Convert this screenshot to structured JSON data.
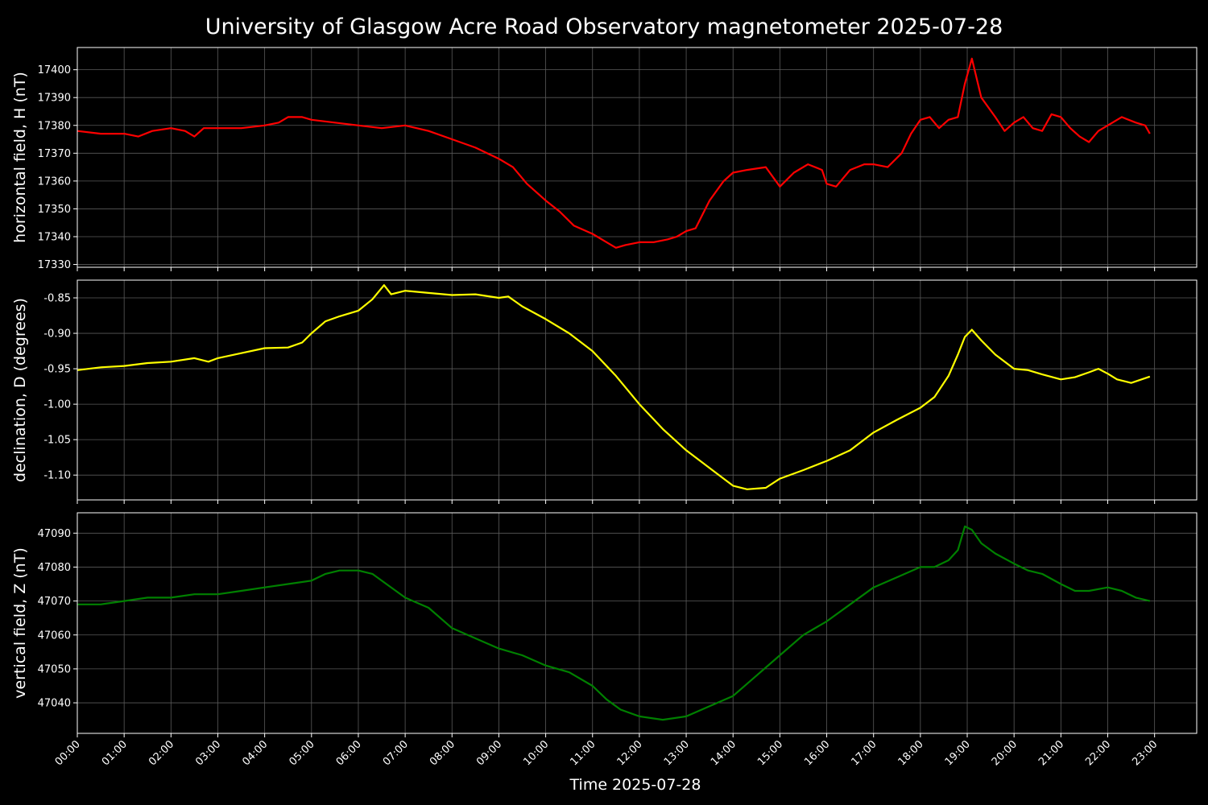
{
  "chart_data": {
    "type": "line",
    "title": "University of Glasgow Acre Road Observatory magnetometer 2025-07-28",
    "xlabel": "Time 2025-07-28",
    "x_ticks": [
      "00:00",
      "01:00",
      "02:00",
      "03:00",
      "04:00",
      "05:00",
      "06:00",
      "07:00",
      "08:00",
      "09:00",
      "10:00",
      "11:00",
      "12:00",
      "13:00",
      "14:00",
      "15:00",
      "16:00",
      "17:00",
      "18:00",
      "19:00",
      "20:00",
      "21:00",
      "22:00",
      "23:00"
    ],
    "xlim_hours": [
      0,
      23.9
    ],
    "grid": true,
    "background": "#000000",
    "panels": [
      {
        "ylabel": "horizontal field, H (nT)",
        "color": "#ff0000",
        "ylim": [
          17329,
          17408
        ],
        "yticks": [
          17330,
          17340,
          17350,
          17360,
          17370,
          17380,
          17390,
          17400
        ],
        "tick_format": 0,
        "x": [
          0,
          0.5,
          1,
          1.3,
          1.6,
          2,
          2.3,
          2.5,
          2.7,
          3,
          3.5,
          4,
          4.3,
          4.5,
          4.8,
          5,
          5.5,
          6,
          6.5,
          7,
          7.5,
          8,
          8.5,
          9,
          9.3,
          9.6,
          10,
          10.3,
          10.6,
          11,
          11.3,
          11.5,
          11.7,
          12,
          12.3,
          12.6,
          12.8,
          13,
          13.2,
          13.5,
          13.8,
          14,
          14.3,
          14.7,
          15,
          15.3,
          15.6,
          15.9,
          16,
          16.2,
          16.5,
          16.8,
          17,
          17.3,
          17.6,
          17.8,
          18,
          18.2,
          18.4,
          18.6,
          18.8,
          18.95,
          19.1,
          19.3,
          19.6,
          19.8,
          20,
          20.2,
          20.4,
          20.6,
          20.8,
          21,
          21.2,
          21.4,
          21.6,
          21.8,
          22,
          22.3,
          22.6,
          22.8,
          22.9
        ],
        "values": [
          17378,
          17377,
          17377,
          17376,
          17378,
          17379,
          17378,
          17376,
          17379,
          17379,
          17379,
          17380,
          17381,
          17383,
          17383,
          17382,
          17381,
          17380,
          17379,
          17380,
          17378,
          17375,
          17372,
          17368,
          17365,
          17359,
          17353,
          17349,
          17344,
          17341,
          17338,
          17336,
          17337,
          17338,
          17338,
          17339,
          17340,
          17342,
          17343,
          17353,
          17360,
          17363,
          17364,
          17365,
          17358,
          17363,
          17366,
          17364,
          17359,
          17358,
          17364,
          17366,
          17366,
          17365,
          17370,
          17377,
          17382,
          17383,
          17379,
          17382,
          17383,
          17395,
          17404,
          17390,
          17383,
          17378,
          17381,
          17383,
          17379,
          17378,
          17384,
          17383,
          17379,
          17376,
          17374,
          17378,
          17380,
          17383,
          17381,
          17380,
          17377
        ]
      },
      {
        "ylabel": "declination, D (degrees)",
        "color": "#ffff00",
        "ylim": [
          -1.135,
          -0.825
        ],
        "yticks": [
          -1.1,
          -1.05,
          -1.0,
          -0.95,
          -0.9,
          -0.85
        ],
        "tick_format": 2,
        "x": [
          0,
          0.5,
          1,
          1.5,
          2,
          2.5,
          2.8,
          3,
          3.5,
          4,
          4.5,
          4.8,
          5,
          5.3,
          5.6,
          6,
          6.3,
          6.55,
          6.7,
          7,
          7.5,
          8,
          8.5,
          9,
          9.2,
          9.5,
          10,
          10.5,
          11,
          11.5,
          12,
          12.5,
          13,
          13.5,
          14,
          14.3,
          14.7,
          15,
          15.5,
          16,
          16.5,
          17,
          17.5,
          18,
          18.3,
          18.6,
          18.8,
          18.95,
          19.1,
          19.3,
          19.6,
          20,
          20.3,
          20.6,
          21,
          21.3,
          21.6,
          21.8,
          22,
          22.2,
          22.5,
          22.9
        ],
        "values": [
          -0.952,
          -0.948,
          -0.946,
          -0.942,
          -0.94,
          -0.935,
          -0.94,
          -0.935,
          -0.928,
          -0.921,
          -0.92,
          -0.913,
          -0.9,
          -0.883,
          -0.876,
          -0.868,
          -0.852,
          -0.832,
          -0.845,
          -0.84,
          -0.843,
          -0.846,
          -0.845,
          -0.85,
          -0.848,
          -0.862,
          -0.88,
          -0.9,
          -0.925,
          -0.96,
          -1.0,
          -1.035,
          -1.065,
          -1.09,
          -1.115,
          -1.12,
          -1.118,
          -1.105,
          -1.093,
          -1.08,
          -1.065,
          -1.04,
          -1.022,
          -1.005,
          -0.99,
          -0.96,
          -0.93,
          -0.905,
          -0.895,
          -0.91,
          -0.93,
          -0.95,
          -0.952,
          -0.958,
          -0.965,
          -0.962,
          -0.955,
          -0.95,
          -0.957,
          -0.965,
          -0.97,
          -0.961
        ]
      },
      {
        "ylabel": "vertical field, Z (nT)",
        "color": "#008000",
        "ylim": [
          47031,
          47096
        ],
        "yticks": [
          47040,
          47050,
          47060,
          47070,
          47080,
          47090
        ],
        "tick_format": 0,
        "x": [
          0,
          0.5,
          1,
          1.5,
          2,
          2.5,
          3,
          3.5,
          4,
          4.5,
          5,
          5.3,
          5.6,
          6,
          6.3,
          6.6,
          7,
          7.5,
          8,
          8.5,
          9,
          9.5,
          10,
          10.5,
          11,
          11.3,
          11.6,
          12,
          12.5,
          13,
          13.5,
          14,
          14.5,
          15,
          15.5,
          16,
          16.5,
          17,
          17.5,
          18,
          18.3,
          18.6,
          18.8,
          18.95,
          19.1,
          19.3,
          19.6,
          20,
          20.3,
          20.6,
          21,
          21.3,
          21.6,
          22,
          22.3,
          22.6,
          22.9
        ],
        "values": [
          47069,
          47069,
          47070,
          47071,
          47071,
          47072,
          47072,
          47073,
          47074,
          47075,
          47076,
          47078,
          47079,
          47079,
          47078,
          47075,
          47071,
          47068,
          47062,
          47059,
          47056,
          47054,
          47051,
          47049,
          47045,
          47041,
          47038,
          47036,
          47035,
          47036,
          47039,
          47042,
          47048,
          47054,
          47060,
          47064,
          47069,
          47074,
          47077,
          47080,
          47080,
          47082,
          47085,
          47092,
          47091,
          47087,
          47084,
          47081,
          47079,
          47078,
          47075,
          47073,
          47073,
          47074,
          47073,
          47071,
          47070
        ]
      }
    ]
  }
}
